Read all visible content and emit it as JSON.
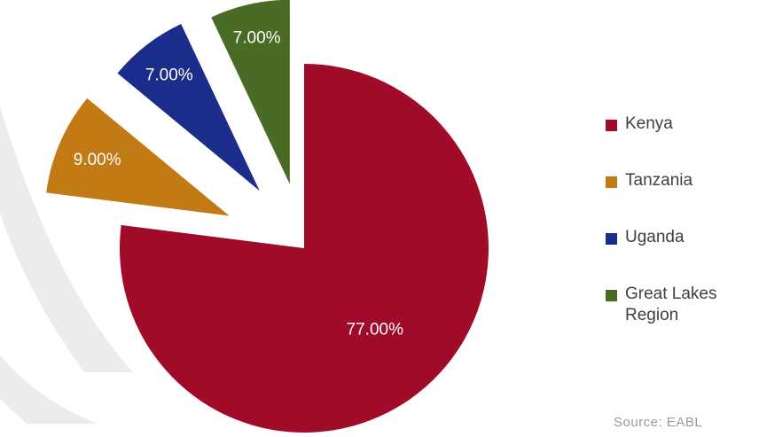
{
  "chart_data": {
    "type": "pie",
    "title": "",
    "exploded": true,
    "categories": [
      "Kenya",
      "Tanzania",
      "Uganda",
      "Great Lakes Region"
    ],
    "values": [
      77.0,
      9.0,
      7.0,
      7.0
    ],
    "data_labels": [
      "77.00%",
      "9.00%",
      "7.00%",
      "7.00%"
    ],
    "colors": [
      "#a00b29",
      "#c27a14",
      "#1b2d8a",
      "#4a6b25"
    ],
    "legend": {
      "placement": "right",
      "entries": [
        "Kenya",
        "Tanzania",
        "Uganda",
        "Great Lakes Region"
      ]
    },
    "source": "Source: EABL"
  }
}
